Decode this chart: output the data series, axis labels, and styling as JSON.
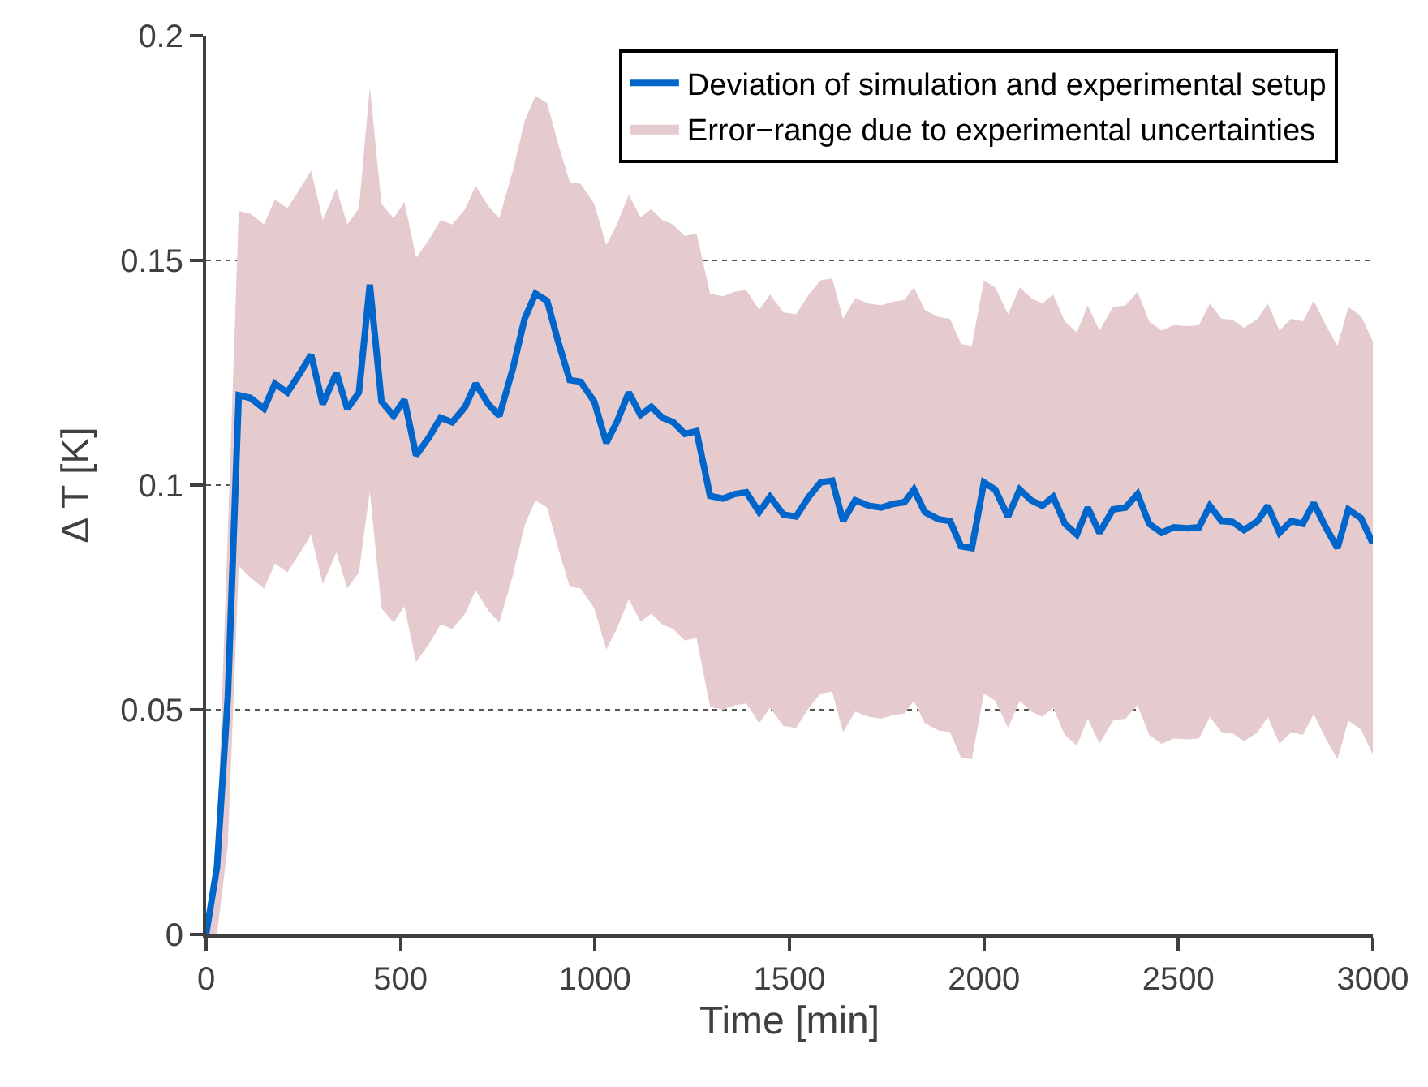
{
  "chart_data": {
    "type": "line",
    "xlabel": "Time [min]",
    "ylabel": "Δ T [K]",
    "x": [
      0,
      28,
      56,
      84,
      114,
      149,
      177,
      209,
      242,
      270,
      300,
      335,
      363,
      393,
      421,
      451,
      482,
      510,
      540,
      573,
      603,
      633,
      666,
      693,
      726,
      754,
      789,
      819,
      847,
      877,
      905,
      935,
      963,
      998,
      1029,
      1056,
      1087,
      1117,
      1145,
      1173,
      1201,
      1231,
      1261,
      1296,
      1329,
      1359,
      1389,
      1422,
      1450,
      1485,
      1517,
      1550,
      1580,
      1610,
      1638,
      1669,
      1704,
      1736,
      1766,
      1796,
      1820,
      1848,
      1883,
      1913,
      1941,
      1969,
      2000,
      2029,
      2062,
      2092,
      2122,
      2150,
      2178,
      2208,
      2239,
      2267,
      2297,
      2332,
      2364,
      2395,
      2425,
      2457,
      2488,
      2523,
      2553,
      2581,
      2611,
      2639,
      2669,
      2704,
      2730,
      2760,
      2790,
      2820,
      2848,
      2879,
      2909,
      2937,
      2970,
      3000
    ],
    "series": [
      {
        "type": "area",
        "name": "Error−range due to experimental uncertainties",
        "color": "#e5cbcd",
        "values": [
          null,
          null,
          null,
          null,
          null,
          null,
          null,
          null,
          null,
          null,
          null,
          null,
          null,
          null,
          null,
          null,
          null,
          null,
          null,
          null,
          null,
          null,
          null,
          null,
          null,
          null,
          null,
          null,
          null,
          null,
          null,
          null,
          null,
          null,
          null,
          null,
          null,
          null,
          null,
          null,
          null,
          null,
          null,
          null,
          null,
          null,
          null,
          null,
          null,
          null,
          null,
          null,
          null,
          null,
          null,
          null,
          null,
          null,
          null,
          null,
          null,
          null,
          null,
          null,
          null,
          null,
          null,
          null,
          null,
          null,
          null,
          null,
          null,
          null,
          null,
          null,
          null,
          null,
          null,
          null,
          null,
          null,
          null,
          null,
          null,
          null,
          null,
          null,
          null,
          null,
          null,
          null,
          null,
          null,
          null,
          null,
          null,
          null,
          null,
          null
        ],
        "upper": [
          0,
          0.02,
          0.09,
          0.161,
          0.1604,
          0.158,
          0.1636,
          0.1616,
          0.166,
          0.17,
          0.159,
          0.166,
          0.158,
          0.1616,
          0.1886,
          0.1626,
          0.1594,
          0.163,
          0.1506,
          0.1546,
          0.159,
          0.158,
          0.1614,
          0.1666,
          0.162,
          0.1594,
          0.17,
          0.181,
          0.1866,
          0.185,
          0.176,
          0.1674,
          0.167,
          0.1626,
          0.1534,
          0.158,
          0.1646,
          0.1596,
          0.1614,
          0.159,
          0.158,
          0.1554,
          0.156,
          0.1426,
          0.142,
          0.143,
          0.1434,
          0.139,
          0.1424,
          0.1384,
          0.138,
          0.1424,
          0.1456,
          0.146,
          0.137,
          0.1416,
          0.1404,
          0.14,
          0.1408,
          0.1412,
          0.144,
          0.139,
          0.1374,
          0.137,
          0.1314,
          0.131,
          0.1456,
          0.144,
          0.138,
          0.144,
          0.1416,
          0.1404,
          0.1424,
          0.1364,
          0.134,
          0.14,
          0.1344,
          0.1396,
          0.14,
          0.143,
          0.1364,
          0.1344,
          0.1356,
          0.1354,
          0.1356,
          0.1404,
          0.137,
          0.1368,
          0.135,
          0.137,
          0.1404,
          0.1344,
          0.137,
          0.1364,
          0.141,
          0.1356,
          0.131,
          0.1396,
          0.1376,
          0.132
        ],
        "lower": [
          0,
          0,
          0.02,
          0.082,
          0.0794,
          0.077,
          0.0826,
          0.0806,
          0.085,
          0.089,
          0.078,
          0.085,
          0.077,
          0.0806,
          0.0986,
          0.0726,
          0.0694,
          0.073,
          0.0606,
          0.0646,
          0.069,
          0.068,
          0.0714,
          0.0766,
          0.072,
          0.0694,
          0.08,
          0.091,
          0.0966,
          0.095,
          0.086,
          0.0774,
          0.077,
          0.0726,
          0.0634,
          0.068,
          0.0746,
          0.0696,
          0.0714,
          0.069,
          0.068,
          0.0654,
          0.066,
          0.0506,
          0.05,
          0.051,
          0.0514,
          0.047,
          0.0504,
          0.0464,
          0.046,
          0.0504,
          0.0536,
          0.054,
          0.045,
          0.0496,
          0.0484,
          0.048,
          0.0488,
          0.0492,
          0.052,
          0.047,
          0.0454,
          0.045,
          0.0394,
          0.039,
          0.0536,
          0.052,
          0.046,
          0.052,
          0.0496,
          0.0484,
          0.0504,
          0.0444,
          0.042,
          0.048,
          0.0424,
          0.0476,
          0.048,
          0.051,
          0.0444,
          0.0424,
          0.0436,
          0.0434,
          0.0436,
          0.0484,
          0.045,
          0.0448,
          0.043,
          0.045,
          0.0484,
          0.0424,
          0.045,
          0.0444,
          0.049,
          0.0436,
          0.039,
          0.0476,
          0.0456,
          0.04
        ]
      },
      {
        "name": "Deviation of simulation and experimental setup",
        "color": "#0066cc",
        "values": [
          0,
          0.015,
          0.053,
          0.12,
          0.1194,
          0.117,
          0.1226,
          0.1206,
          0.125,
          0.129,
          0.118,
          0.125,
          0.117,
          0.1206,
          0.1446,
          0.1186,
          0.1154,
          0.119,
          0.1066,
          0.1106,
          0.115,
          0.114,
          0.1174,
          0.1226,
          0.118,
          0.1154,
          0.126,
          0.137,
          0.1426,
          0.141,
          0.132,
          0.1234,
          0.123,
          0.1186,
          0.1094,
          0.114,
          0.1206,
          0.1156,
          0.1174,
          0.115,
          0.114,
          0.1114,
          0.112,
          0.0976,
          0.097,
          0.098,
          0.0984,
          0.094,
          0.0974,
          0.0934,
          0.093,
          0.0974,
          0.1006,
          0.101,
          0.092,
          0.0966,
          0.0954,
          0.095,
          0.0958,
          0.0962,
          0.099,
          0.094,
          0.0924,
          0.092,
          0.0864,
          0.086,
          0.1006,
          0.099,
          0.093,
          0.099,
          0.0966,
          0.0954,
          0.0974,
          0.0914,
          0.089,
          0.095,
          0.0894,
          0.0946,
          0.095,
          0.098,
          0.0914,
          0.0894,
          0.0906,
          0.0904,
          0.0906,
          0.0954,
          0.092,
          0.0918,
          0.09,
          0.092,
          0.0954,
          0.0894,
          0.092,
          0.0914,
          0.096,
          0.0906,
          0.086,
          0.0946,
          0.0926,
          0.087
        ]
      }
    ],
    "xlim": [
      0,
      3000
    ],
    "xticks": [
      0,
      500,
      1000,
      1500,
      2000,
      2500,
      3000
    ],
    "ylim": [
      0,
      0.2
    ],
    "yticks": [
      0,
      0.05,
      0.1,
      0.15,
      0.2
    ],
    "grid": "y",
    "legend": "top right",
    "marker": "none",
    "line_style": "solid"
  }
}
